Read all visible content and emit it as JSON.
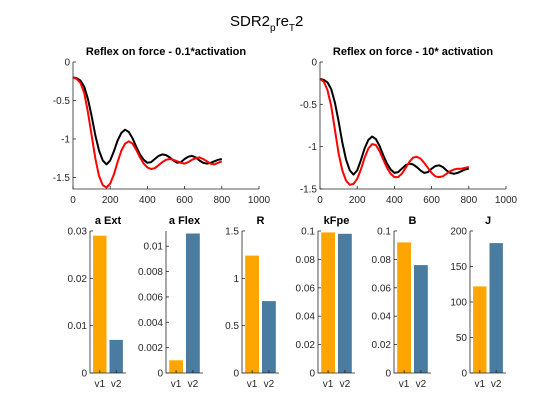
{
  "figure": {
    "title_main": "SDR2",
    "title_sub1": "p",
    "title_mid": "re",
    "title_sub2": "T",
    "title_end": "2"
  },
  "colors": {
    "line_black": "#000000",
    "line_red": "#ff0000",
    "bar_v1": "#ffa500",
    "bar_v2": "#4a7ba0",
    "axis": "#262626"
  },
  "chart_data": [
    {
      "type": "line",
      "title": "Reflex on force - 0.1*activation",
      "xlim": [
        0,
        1000
      ],
      "ylim": [
        -1.65,
        0
      ],
      "xticks": [
        "0",
        "200",
        "400",
        "600",
        "800",
        "1000"
      ],
      "yticks": [
        "-1.5",
        "-1",
        "-0.5",
        "0"
      ],
      "series": [
        {
          "color": "black",
          "x": [
            0,
            20,
            40,
            60,
            80,
            100,
            120,
            140,
            160,
            180,
            200,
            220,
            240,
            260,
            280,
            300,
            320,
            340,
            360,
            380,
            400,
            420,
            440,
            460,
            480,
            500,
            520,
            540,
            560,
            580,
            600,
            620,
            640,
            660,
            680,
            700,
            720,
            740,
            760,
            780,
            800
          ],
          "y": [
            -0.2,
            -0.21,
            -0.24,
            -0.32,
            -0.48,
            -0.7,
            -0.95,
            -1.15,
            -1.28,
            -1.33,
            -1.28,
            -1.16,
            -1.02,
            -0.92,
            -0.88,
            -0.91,
            -0.99,
            -1.1,
            -1.2,
            -1.27,
            -1.31,
            -1.3,
            -1.26,
            -1.22,
            -1.2,
            -1.21,
            -1.24,
            -1.28,
            -1.31,
            -1.3,
            -1.26,
            -1.23,
            -1.22,
            -1.24,
            -1.28,
            -1.31,
            -1.32,
            -1.31,
            -1.29,
            -1.27,
            -1.26
          ]
        },
        {
          "color": "red",
          "x": [
            0,
            20,
            40,
            60,
            80,
            100,
            120,
            140,
            160,
            180,
            200,
            220,
            240,
            260,
            280,
            300,
            320,
            340,
            360,
            380,
            400,
            420,
            440,
            460,
            480,
            500,
            520,
            540,
            560,
            580,
            600,
            620,
            640,
            660,
            680,
            700,
            720,
            740,
            760,
            780,
            800
          ],
          "y": [
            -0.2,
            -0.22,
            -0.27,
            -0.4,
            -0.65,
            -0.95,
            -1.25,
            -1.48,
            -1.6,
            -1.63,
            -1.58,
            -1.46,
            -1.3,
            -1.15,
            -1.06,
            -1.03,
            -1.06,
            -1.14,
            -1.24,
            -1.32,
            -1.37,
            -1.39,
            -1.38,
            -1.34,
            -1.3,
            -1.27,
            -1.26,
            -1.27,
            -1.29,
            -1.31,
            -1.32,
            -1.3,
            -1.27,
            -1.25,
            -1.24,
            -1.26,
            -1.29,
            -1.32,
            -1.33,
            -1.31,
            -1.29
          ]
        }
      ]
    },
    {
      "type": "line",
      "title": "Reflex on force - 10* activation",
      "xlim": [
        0,
        1000
      ],
      "ylim": [
        -1.5,
        0
      ],
      "xticks": [
        "0",
        "200",
        "400",
        "600",
        "800",
        "1000"
      ],
      "yticks": [
        "-1.5",
        "-1",
        "-0.5",
        "0"
      ],
      "series": [
        {
          "color": "black",
          "x": [
            0,
            20,
            40,
            60,
            80,
            100,
            120,
            140,
            160,
            180,
            200,
            220,
            240,
            260,
            280,
            300,
            320,
            340,
            360,
            380,
            400,
            420,
            440,
            460,
            480,
            500,
            520,
            540,
            560,
            580,
            600,
            620,
            640,
            660,
            680,
            700,
            720,
            740,
            760,
            780,
            800
          ],
          "y": [
            -0.2,
            -0.21,
            -0.24,
            -0.32,
            -0.48,
            -0.7,
            -0.95,
            -1.15,
            -1.28,
            -1.33,
            -1.28,
            -1.16,
            -1.02,
            -0.92,
            -0.88,
            -0.91,
            -0.99,
            -1.1,
            -1.2,
            -1.27,
            -1.31,
            -1.3,
            -1.26,
            -1.22,
            -1.2,
            -1.21,
            -1.24,
            -1.28,
            -1.31,
            -1.3,
            -1.26,
            -1.23,
            -1.22,
            -1.24,
            -1.28,
            -1.31,
            -1.32,
            -1.31,
            -1.29,
            -1.27,
            -1.26
          ]
        },
        {
          "color": "red",
          "x": [
            0,
            20,
            40,
            60,
            80,
            100,
            120,
            140,
            160,
            180,
            200,
            220,
            240,
            260,
            280,
            300,
            320,
            340,
            360,
            380,
            400,
            420,
            440,
            460,
            480,
            500,
            520,
            540,
            560,
            580,
            600,
            620,
            640,
            660,
            680,
            700,
            720,
            740,
            760,
            780,
            800
          ],
          "y": [
            -0.2,
            -0.23,
            -0.33,
            -0.52,
            -0.8,
            -1.08,
            -1.28,
            -1.4,
            -1.45,
            -1.44,
            -1.38,
            -1.27,
            -1.13,
            -1.02,
            -0.97,
            -0.98,
            -1.05,
            -1.15,
            -1.25,
            -1.32,
            -1.36,
            -1.36,
            -1.32,
            -1.25,
            -1.18,
            -1.13,
            -1.12,
            -1.14,
            -1.19,
            -1.25,
            -1.31,
            -1.35,
            -1.36,
            -1.35,
            -1.32,
            -1.29,
            -1.27,
            -1.26,
            -1.26,
            -1.25,
            -1.24
          ]
        }
      ]
    },
    {
      "type": "bar",
      "title": "a Ext",
      "categories": [
        "v1",
        "v2"
      ],
      "values": [
        0.029,
        0.007
      ],
      "ylim": [
        0,
        0.03
      ],
      "yticks": [
        "0",
        "0.01",
        "0.02",
        "0.03"
      ]
    },
    {
      "type": "bar",
      "title": "a Flex",
      "categories": [
        "v1",
        "v2"
      ],
      "values": [
        0.001,
        0.011
      ],
      "ylim": [
        0,
        0.0112
      ],
      "yticks": [
        "0",
        "0.002",
        "0.004",
        "0.006",
        "0.008",
        "0.01"
      ]
    },
    {
      "type": "bar",
      "title": "R",
      "categories": [
        "v1",
        "v2"
      ],
      "values": [
        1.24,
        0.76
      ],
      "ylim": [
        0,
        1.5
      ],
      "yticks": [
        "0",
        "0.5",
        "1",
        "1.5"
      ]
    },
    {
      "type": "bar",
      "title": "kFpe",
      "categories": [
        "v1",
        "v2"
      ],
      "values": [
        0.099,
        0.098
      ],
      "ylim": [
        0,
        0.1
      ],
      "yticks": [
        "0",
        "0.02",
        "0.04",
        "0.06",
        "0.08",
        "0.1"
      ]
    },
    {
      "type": "bar",
      "title": "B",
      "categories": [
        "v1",
        "v2"
      ],
      "values": [
        0.092,
        0.076
      ],
      "ylim": [
        0,
        0.1
      ],
      "yticks": [
        "0",
        "0.02",
        "0.04",
        "0.06",
        "0.08",
        "0.1"
      ]
    },
    {
      "type": "bar",
      "title": "J",
      "categories": [
        "v1",
        "v2"
      ],
      "values": [
        122,
        183
      ],
      "ylim": [
        0,
        200
      ],
      "yticks": [
        "0",
        "50",
        "100",
        "150",
        "200"
      ]
    }
  ]
}
